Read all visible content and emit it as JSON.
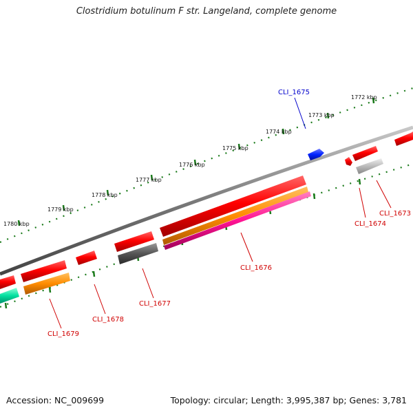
{
  "header": {
    "title": "Clostridium botulinum F str. Langeland, complete genome"
  },
  "footer": {
    "accession": "Accession: NC_009699",
    "stats": "Topology: circular; Length: 3,995,387 bp; Genes: 3,781"
  },
  "scale": {
    "labels": [
      "1772 kbp",
      "1773 kbp",
      "1774 kbp",
      "1775 kbp",
      "1776 kbp",
      "1777 kbp",
      "1778 kbp",
      "1779 kbp",
      "1780 kbp"
    ]
  },
  "genes": [
    {
      "id": "CLI_1673",
      "color": "#d00000"
    },
    {
      "id": "CLI_1674",
      "color": "#d00000"
    },
    {
      "id": "CLI_1675",
      "color": "#0000cc"
    },
    {
      "id": "CLI_1676",
      "color": "#d00000"
    },
    {
      "id": "CLI_1677",
      "color": "#d00000"
    },
    {
      "id": "CLI_1678",
      "color": "#d00000"
    },
    {
      "id": "CLI_1679",
      "color": "#d00000"
    }
  ],
  "colors": {
    "backbone": "#7a7a7a",
    "tick_green": "#1a7a1a",
    "forward_red": "#ee0000",
    "orange": "#ff8c00",
    "pink": "#ff1493",
    "dark_gray": "#555555",
    "light_gray": "#b8b8b8",
    "teal": "#00dd99",
    "blue": "#0022ff"
  }
}
